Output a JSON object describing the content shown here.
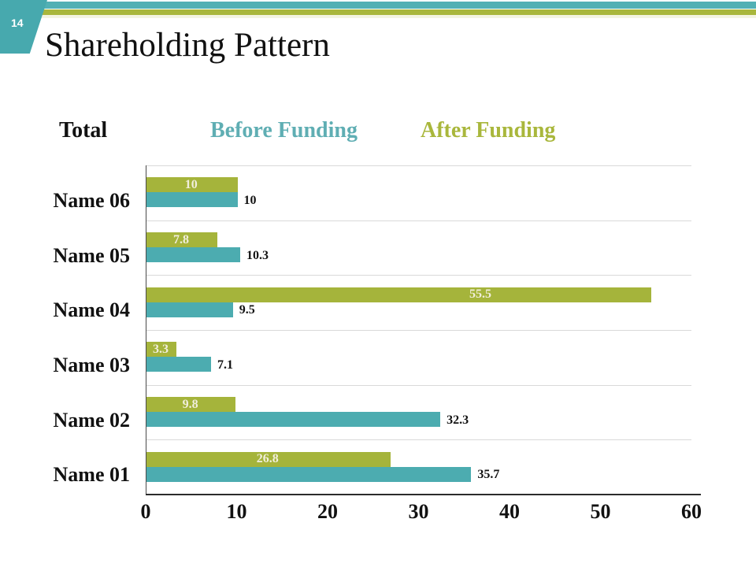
{
  "slide": {
    "number": "14",
    "title": "Shareholding Pattern"
  },
  "legend": {
    "items": [
      {
        "label": "Total",
        "color": "#111111"
      },
      {
        "label": "Before Funding",
        "color": "#5FAEB3"
      },
      {
        "label": "After Funding",
        "color": "#A9B73C"
      }
    ]
  },
  "chart_data": {
    "type": "bar",
    "orientation": "horizontal",
    "title": "Shareholding Pattern",
    "categories": [
      "Name 06",
      "Name 05",
      "Name 04",
      "Name 03",
      "Name 02",
      "Name 01"
    ],
    "series": [
      {
        "name": "After Funding",
        "color": "#A5B43B",
        "label_color": "#F1EEDC",
        "label_position": "inside-center",
        "values": [
          10,
          7.8,
          55.5,
          3.3,
          9.8,
          26.8
        ],
        "labels": [
          "10",
          "7.8",
          "55.5",
          "3.3",
          "9.8",
          "26.8"
        ]
      },
      {
        "name": "Before Funding",
        "color": "#4CACB0",
        "label_color": "#111111",
        "label_position": "outside-end",
        "values": [
          10,
          10.3,
          9.5,
          7.1,
          32.3,
          35.7
        ],
        "labels": [
          "10",
          "10.3",
          "9.5",
          "7.1",
          "32.3",
          "35.7"
        ]
      }
    ],
    "x_ticks": [
      "0",
      "10",
      "20",
      "30",
      "40",
      "50",
      "60"
    ],
    "xlim": [
      0,
      60
    ],
    "grid": "horizontal-category-separators",
    "legend_position": "top"
  },
  "colors": {
    "stripe_teal": "#52B0B4",
    "stripe_olive": "#A9B73C",
    "stripe_pale": "#F3F4E1",
    "badge_teal": "#47A9AE",
    "bar_teal": "#4CACB0",
    "bar_olive": "#A5B43B",
    "inside_label": "#F1EEDC",
    "gridline": "#D9D9D9",
    "axis_line": "#4A4A4A"
  }
}
